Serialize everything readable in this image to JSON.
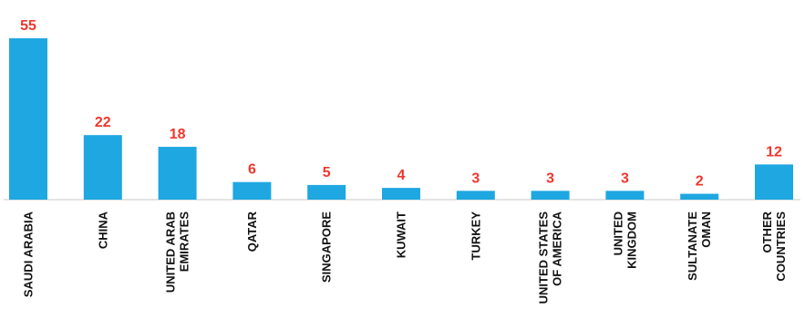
{
  "chart_data": {
    "type": "bar",
    "categories": [
      [
        "SAUDI ARABIA"
      ],
      [
        "CHINA"
      ],
      [
        "UNITED ARAB",
        "EMIRATES"
      ],
      [
        "QATAR"
      ],
      [
        "SINGAPORE"
      ],
      [
        "KUWAIT"
      ],
      [
        "TURKEY"
      ],
      [
        "UNITED STATES",
        "OF AMERICA"
      ],
      [
        "UNITED",
        "KINGDOM"
      ],
      [
        "SULTANATE",
        "OMAN"
      ],
      [
        "OTHER",
        "COUNTRIES"
      ]
    ],
    "values": [
      55,
      22,
      18,
      6,
      5,
      4,
      3,
      3,
      3,
      2,
      12
    ],
    "ylim": [
      0,
      55
    ],
    "grid": false,
    "colors": {
      "bar": "#1FA7E1",
      "value_label": "#F0362C",
      "category_label": "#111111"
    }
  }
}
